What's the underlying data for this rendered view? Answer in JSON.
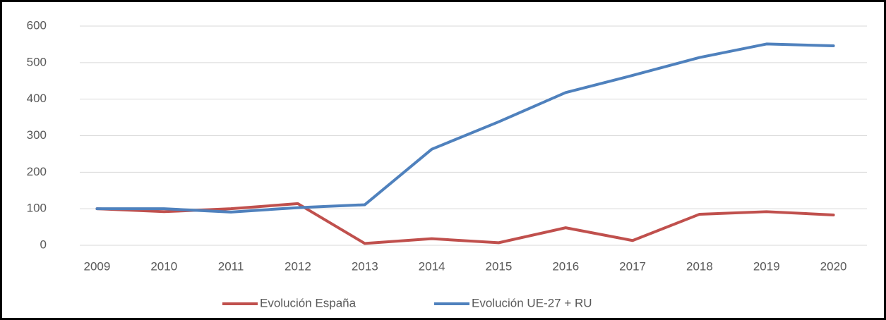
{
  "chart_data": {
    "type": "line",
    "categories": [
      "2009",
      "2010",
      "2011",
      "2012",
      "2013",
      "2014",
      "2015",
      "2016",
      "2017",
      "2018",
      "2019",
      "2020"
    ],
    "series": [
      {
        "name": "Evolución España",
        "color": "#c0504d",
        "values": [
          100,
          92,
          100,
          114,
          5,
          18,
          7,
          48,
          13,
          85,
          92,
          83
        ]
      },
      {
        "name": "Evolución UE-27 + RU",
        "color": "#4f81bd",
        "values": [
          100,
          100,
          91,
          103,
          111,
          263,
          338,
          418,
          465,
          514,
          551,
          546
        ]
      }
    ],
    "ylim": [
      0,
      600
    ],
    "yticks": [
      0,
      100,
      200,
      300,
      400,
      500,
      600
    ],
    "grid": true,
    "legend": "bottom"
  }
}
